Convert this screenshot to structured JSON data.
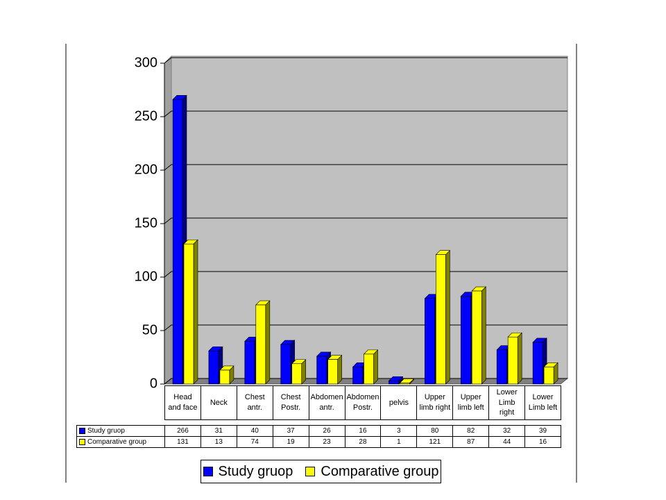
{
  "chart_data": {
    "type": "bar",
    "categories": [
      "Head and face",
      "Neck",
      "Chest antr.",
      "Chest Postr.",
      "Abdomen antr.",
      "Abdomen Postr.",
      "pelvis",
      "Upper limb right",
      "Upper limb left",
      "Lower Limb right",
      "Lower Limb left"
    ],
    "series": [
      {
        "name": "Study gruop",
        "color": "#0000ff",
        "values": [
          266,
          31,
          40,
          37,
          26,
          16,
          3,
          80,
          82,
          32,
          39
        ]
      },
      {
        "name": "Comparative group",
        "color": "#ffff00",
        "values": [
          131,
          13,
          74,
          19,
          23,
          28,
          1,
          121,
          87,
          44,
          16
        ]
      }
    ],
    "ylim": [
      0,
      300
    ],
    "yticks": [
      0,
      50,
      100,
      150,
      200,
      250,
      300
    ],
    "grid": true
  }
}
